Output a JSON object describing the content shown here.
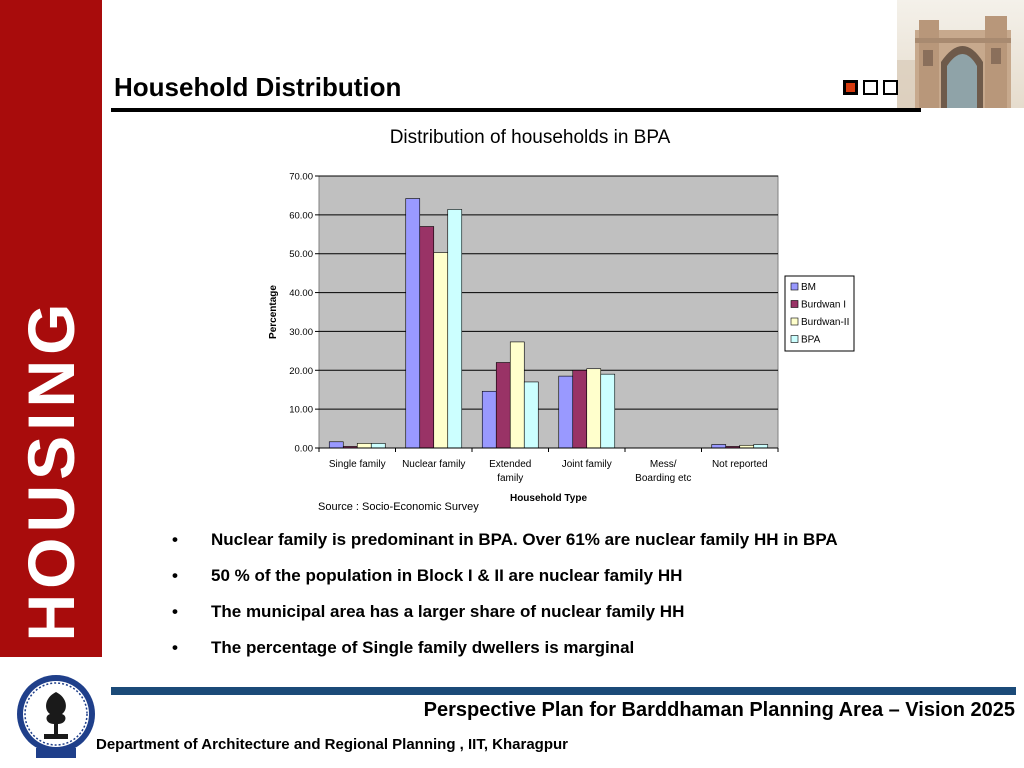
{
  "side_label": "HOUSING",
  "page_title": "Household Distribution",
  "bullets": [
    "Nuclear family is predominant in BPA. Over 61% are nuclear family HH in BPA",
    "50 % of the population in Block I & II are nuclear family HH",
    "The municipal area has a larger share of nuclear family HH",
    "The percentage of Single family dwellers is marginal"
  ],
  "bullet_symbol": "•",
  "footer": {
    "plan_title": "Perspective Plan for Barddhaman Planning Area – Vision 2025",
    "department": "Department of Architecture and Regional Planning , IIT, Kharagpur"
  },
  "colors": {
    "side_bar": "#a80c0c",
    "footer_rule": "#1b4a78",
    "nav_active": "#d63a0f",
    "plot_bg": "#c0c0c0"
  },
  "logo_icon": "iit-kharagpur-seal-icon",
  "photo_icon": "building-archway-photo",
  "chart_data": {
    "type": "bar",
    "title": "Distribution of households in BPA",
    "xlabel": "Household Type",
    "ylabel": "Percentage",
    "source_note": "Source : Socio-Economic Survey",
    "categories": [
      [
        "Single family"
      ],
      [
        "Nuclear family"
      ],
      [
        "Extended",
        "family"
      ],
      [
        "Joint family"
      ],
      [
        "Mess/",
        "Boarding etc"
      ],
      [
        "Not reported"
      ]
    ],
    "ylim": [
      0,
      70
    ],
    "yticks": [
      "0.00",
      "10.00",
      "20.00",
      "30.00",
      "40.00",
      "50.00",
      "60.00",
      "70.00"
    ],
    "grid": true,
    "legend_position": "right",
    "series": [
      {
        "name": "BM",
        "color": "#9999ff",
        "values": [
          1.6,
          64.2,
          14.6,
          18.5,
          0,
          0.9
        ]
      },
      {
        "name": "Burdwan I",
        "color": "#993366",
        "values": [
          0.4,
          57.0,
          22.0,
          20.0,
          0,
          0.4
        ]
      },
      {
        "name": "Burdwan-II",
        "color": "#ffffcc",
        "values": [
          1.2,
          50.3,
          27.3,
          20.4,
          0,
          0.7
        ]
      },
      {
        "name": "BPA",
        "color": "#ccffff",
        "values": [
          1.2,
          61.4,
          17.0,
          19.0,
          0,
          0.9
        ]
      }
    ]
  }
}
